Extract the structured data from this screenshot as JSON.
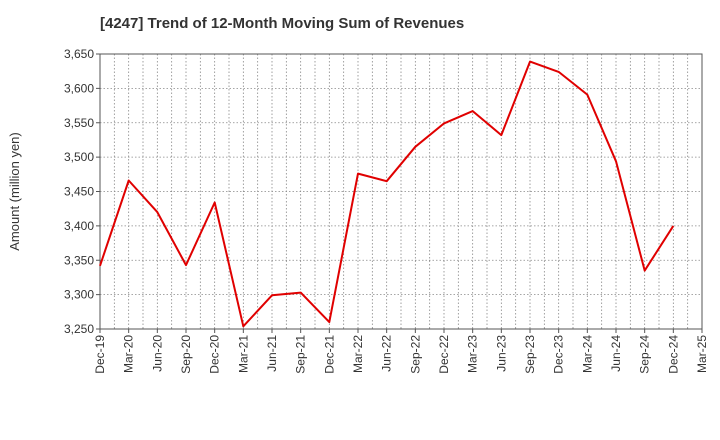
{
  "chart_data": {
    "type": "line",
    "title": "[4247]  Trend of 12-Month Moving Sum of Revenues",
    "xlabel": "",
    "ylabel": "Amount (million yen)",
    "ylim": [
      3250,
      3650
    ],
    "yticks": [
      "3,250",
      "3,300",
      "3,350",
      "3,400",
      "3,450",
      "3,500",
      "3,550",
      "3,600",
      "3,650"
    ],
    "ytick_values": [
      3250,
      3300,
      3350,
      3400,
      3450,
      3500,
      3550,
      3600,
      3650
    ],
    "categories": [
      "Dec-19",
      "Mar-20",
      "Jun-20",
      "Sep-20",
      "Dec-20",
      "Mar-21",
      "Jun-21",
      "Sep-21",
      "Dec-21",
      "Mar-22",
      "Jun-22",
      "Sep-22",
      "Dec-22",
      "Mar-23",
      "Jun-23",
      "Sep-23",
      "Dec-23",
      "Mar-24",
      "Jun-24",
      "Sep-24",
      "Dec-24",
      "Mar-25"
    ],
    "series": [
      {
        "values": [
          3342,
          3466,
          3420,
          3343,
          3434,
          3254,
          3299,
          3303,
          3260,
          3476,
          3465,
          3515,
          3549,
          3567,
          3532,
          3639,
          3624,
          3591,
          3494,
          3335,
          3400,
          null
        ]
      }
    ],
    "grid": true,
    "line_color": "#e00000",
    "grid_color": "#888888"
  }
}
